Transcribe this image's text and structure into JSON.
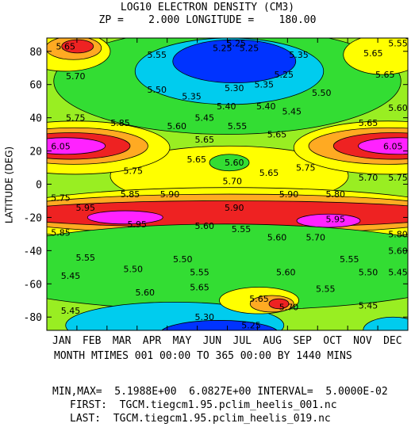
{
  "header": {
    "title": "LOG10 ELECTRON DENSITY (CM3)",
    "subtitle": "ZP =    2.000 LONGITUDE =    180.00"
  },
  "footer": {
    "x_caption": "MONTH MTIMES 001 00:00 TO 365 00:00 BY 1440 MINS",
    "minmax": "MIN,MAX=  5.1988E+00  6.0827E+00 INTERVAL=  5.0000E-02",
    "first": "FIRST:  TGCM.tiegcm1.95.pclim_heelis_001.nc",
    "last": "LAST:  TGCM.tiegcm1.95.pclim_heelis_019.nc"
  },
  "chart_data": {
    "type": "heatmap",
    "title": "LOG10 ELECTRON DENSITY (CM3)",
    "subtitle": "ZP =    2.000 LONGITUDE =    180.00",
    "xlabel": "MONTH MTIMES 001 00:00 TO 365 00:00 BY 1440 MINS",
    "ylabel": "LATITUDE (DEG)",
    "x_ticks": [
      "JAN",
      "FEB",
      "MAR",
      "APR",
      "MAY",
      "JUN",
      "JUL",
      "AUG",
      "SEP",
      "OCT",
      "NOV",
      "DEC"
    ],
    "y_ticks": [
      80,
      60,
      40,
      20,
      0,
      -20,
      -40,
      -60,
      -80
    ],
    "xlim": [
      1,
      365
    ],
    "ylim": [
      -88,
      88
    ],
    "min": 5.1988,
    "max": 6.0827,
    "interval": 0.05,
    "contour_labels": [
      {
        "v": "5.65",
        "x": 20,
        "y": 83
      },
      {
        "v": "5.55",
        "x": 112,
        "y": 78
      },
      {
        "v": "5.25",
        "x": 178,
        "y": 82
      },
      {
        "v": "5.25",
        "x": 192,
        "y": 85
      },
      {
        "v": "5.25",
        "x": 205,
        "y": 82
      },
      {
        "v": "5.35",
        "x": 255,
        "y": 78
      },
      {
        "v": "5.65",
        "x": 330,
        "y": 79
      },
      {
        "v": "5.55",
        "x": 355,
        "y": 85
      },
      {
        "v": "5.70",
        "x": 30,
        "y": 65
      },
      {
        "v": "5.50",
        "x": 112,
        "y": 57
      },
      {
        "v": "5.35",
        "x": 147,
        "y": 53
      },
      {
        "v": "5.30",
        "x": 190,
        "y": 58
      },
      {
        "v": "5.35",
        "x": 220,
        "y": 60
      },
      {
        "v": "5.25",
        "x": 240,
        "y": 66
      },
      {
        "v": "5.50",
        "x": 278,
        "y": 55
      },
      {
        "v": "5.65",
        "x": 342,
        "y": 66
      },
      {
        "v": "5.40",
        "x": 182,
        "y": 47
      },
      {
        "v": "5.40",
        "x": 222,
        "y": 47
      },
      {
        "v": "5.45",
        "x": 160,
        "y": 40
      },
      {
        "v": "5.45",
        "x": 248,
        "y": 44
      },
      {
        "v": "5.60",
        "x": 132,
        "y": 35
      },
      {
        "v": "5.55",
        "x": 193,
        "y": 35
      },
      {
        "v": "5.60",
        "x": 355,
        "y": 46
      },
      {
        "v": "5.75",
        "x": 30,
        "y": 40
      },
      {
        "v": "5.85",
        "x": 75,
        "y": 37
      },
      {
        "v": "5.65",
        "x": 325,
        "y": 37
      },
      {
        "v": "5.65",
        "x": 160,
        "y": 27
      },
      {
        "v": "5.65",
        "x": 233,
        "y": 30
      },
      {
        "v": "6.05",
        "x": 15,
        "y": 23
      },
      {
        "v": "6.05",
        "x": 350,
        "y": 23
      },
      {
        "v": "5.60",
        "x": 190,
        "y": 13
      },
      {
        "v": "5.65",
        "x": 152,
        "y": 15
      },
      {
        "v": "5.65",
        "x": 225,
        "y": 7
      },
      {
        "v": "5.75",
        "x": 88,
        "y": 8
      },
      {
        "v": "5.75",
        "x": 262,
        "y": 10
      },
      {
        "v": "5.70",
        "x": 188,
        "y": 2
      },
      {
        "v": "5.70",
        "x": 325,
        "y": 4
      },
      {
        "v": "5.75",
        "x": 355,
        "y": 4
      },
      {
        "v": "5.75",
        "x": 15,
        "y": -8
      },
      {
        "v": "5.85",
        "x": 85,
        "y": -6
      },
      {
        "v": "5.90",
        "x": 125,
        "y": -6
      },
      {
        "v": "5.90",
        "x": 245,
        "y": -6
      },
      {
        "v": "5.80",
        "x": 292,
        "y": -6
      },
      {
        "v": "5.95",
        "x": 40,
        "y": -14
      },
      {
        "v": "5.90",
        "x": 190,
        "y": -14
      },
      {
        "v": "5.95",
        "x": 92,
        "y": -24
      },
      {
        "v": "5.95",
        "x": 292,
        "y": -21
      },
      {
        "v": "5.85",
        "x": 15,
        "y": -29
      },
      {
        "v": "5.80",
        "x": 355,
        "y": -30
      },
      {
        "v": "5.60",
        "x": 160,
        "y": -25
      },
      {
        "v": "5.55",
        "x": 197,
        "y": -27
      },
      {
        "v": "5.70",
        "x": 272,
        "y": -32
      },
      {
        "v": "5.60",
        "x": 233,
        "y": -32
      },
      {
        "v": "5.60",
        "x": 355,
        "y": -40
      },
      {
        "v": "5.55",
        "x": 40,
        "y": -44
      },
      {
        "v": "5.50",
        "x": 138,
        "y": -45
      },
      {
        "v": "5.55",
        "x": 306,
        "y": -45
      },
      {
        "v": "5.50",
        "x": 325,
        "y": -53
      },
      {
        "v": "5.50",
        "x": 88,
        "y": -51
      },
      {
        "v": "5.55",
        "x": 155,
        "y": -53
      },
      {
        "v": "5.60",
        "x": 242,
        "y": -53
      },
      {
        "v": "5.45",
        "x": 355,
        "y": -53
      },
      {
        "v": "5.45",
        "x": 25,
        "y": -55
      },
      {
        "v": "5.65",
        "x": 155,
        "y": -62
      },
      {
        "v": "5.60",
        "x": 100,
        "y": -65
      },
      {
        "v": "5.55",
        "x": 282,
        "y": -63
      },
      {
        "v": "5.65",
        "x": 215,
        "y": -69
      },
      {
        "v": "5.70",
        "x": 245,
        "y": -74
      },
      {
        "v": "5.45",
        "x": 25,
        "y": -76
      },
      {
        "v": "5.45",
        "x": 325,
        "y": -73
      },
      {
        "v": "5.30",
        "x": 160,
        "y": -80
      },
      {
        "v": "5.25",
        "x": 207,
        "y": -85
      }
    ]
  },
  "colors": {
    "blue": "#0033ff",
    "cyan": "#00ccee",
    "green": "#33dd33",
    "lime": "#99ee22",
    "yellow": "#ffff00",
    "orange": "#ffaa22",
    "red": "#ee2222",
    "magenta": "#ff22ff"
  }
}
